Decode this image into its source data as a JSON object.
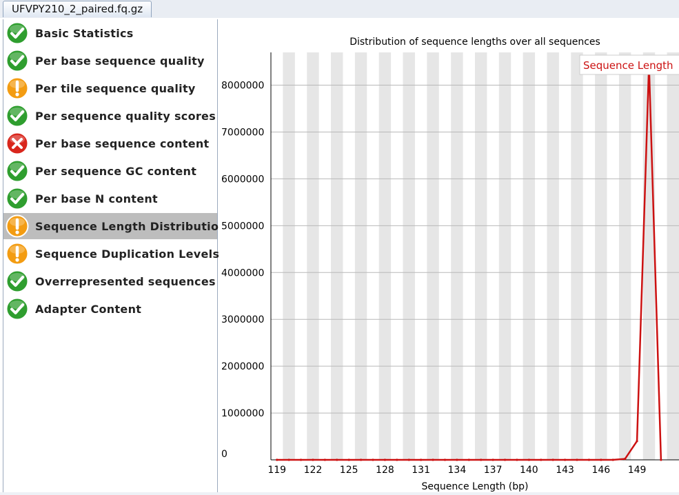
{
  "tab": {
    "title": "UFVPY210_2_paired.fq.gz"
  },
  "modules": [
    {
      "label": "Basic Statistics",
      "status": "pass",
      "icon": "check-icon"
    },
    {
      "label": "Per base sequence quality",
      "status": "pass",
      "icon": "check-icon"
    },
    {
      "label": "Per tile sequence quality",
      "status": "warn",
      "icon": "warning-icon"
    },
    {
      "label": "Per sequence quality scores",
      "status": "pass",
      "icon": "check-icon"
    },
    {
      "label": "Per base sequence content",
      "status": "fail",
      "icon": "cross-icon"
    },
    {
      "label": "Per sequence GC content",
      "status": "pass",
      "icon": "check-icon"
    },
    {
      "label": "Per base N content",
      "status": "pass",
      "icon": "check-icon"
    },
    {
      "label": "Sequence Length Distribution",
      "status": "warn",
      "icon": "warning-icon",
      "selected": true
    },
    {
      "label": "Sequence Duplication Levels",
      "status": "warn",
      "icon": "warning-icon"
    },
    {
      "label": "Overrepresented sequences",
      "status": "pass",
      "icon": "check-icon"
    },
    {
      "label": "Adapter Content",
      "status": "pass",
      "icon": "check-icon"
    }
  ],
  "colors": {
    "pass": "#2f9e2f",
    "warn": "#f39c12",
    "fail": "#d9261c",
    "series": "#cc1111",
    "stripe": "#e6e6e6",
    "grid": "#b8b8b8"
  },
  "chart_data": {
    "type": "line",
    "title": "Distribution of sequence lengths over all sequences",
    "xlabel": "Sequence Length (bp)",
    "ylabel": "",
    "x": [
      119,
      120,
      121,
      122,
      123,
      124,
      125,
      126,
      127,
      128,
      129,
      130,
      131,
      132,
      133,
      134,
      135,
      136,
      137,
      138,
      139,
      140,
      141,
      142,
      143,
      144,
      145,
      146,
      147,
      148,
      149,
      150,
      151
    ],
    "x_tick_labels": [
      "119",
      "122",
      "125",
      "128",
      "131",
      "134",
      "137",
      "140",
      "143",
      "146",
      "149"
    ],
    "y_ticks": [
      0,
      1000000,
      2000000,
      3000000,
      4000000,
      5000000,
      6000000,
      7000000,
      8000000
    ],
    "y_tick_labels": [
      "0",
      "1000000",
      "2000000",
      "3000000",
      "4000000",
      "5000000",
      "6000000",
      "7000000",
      "8000000"
    ],
    "ylim": [
      0,
      8700000
    ],
    "xlim": [
      118.5,
      152.5
    ],
    "grid": true,
    "legend_position": "top-right",
    "series": [
      {
        "name": "Sequence Length",
        "values": [
          0,
          0,
          0,
          0,
          0,
          0,
          0,
          0,
          0,
          0,
          0,
          0,
          0,
          0,
          0,
          0,
          0,
          0,
          0,
          0,
          0,
          0,
          0,
          0,
          0,
          0,
          0,
          0,
          0,
          20000,
          400000,
          8450000,
          0
        ]
      }
    ]
  }
}
